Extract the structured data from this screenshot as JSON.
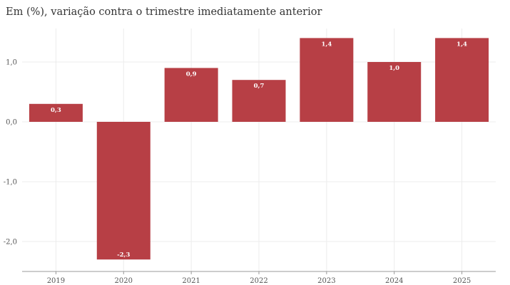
{
  "subtitle": "Em (%), variação contra o trimestre imediatamente anterior",
  "colors": {
    "bar": "#b5393f",
    "grid": "#ececec",
    "axis": "#999999",
    "text": "#555555"
  },
  "chart_data": {
    "type": "bar",
    "title": "",
    "subtitle": "Em (%), variação contra o trimestre imediatamente anterior",
    "xlabel": "",
    "ylabel": "",
    "categories": [
      "2019",
      "2020",
      "2021",
      "2022",
      "2023",
      "2024",
      "2025"
    ],
    "values": [
      0.3,
      -2.3,
      0.9,
      0.7,
      1.4,
      1.0,
      1.4
    ],
    "data_labels": [
      "0,3",
      "-2,3",
      "0,9",
      "0,7",
      "1,4",
      "1,0",
      "1,4"
    ],
    "y_ticks": [
      1.0,
      0.0,
      -1.0,
      -2.0
    ],
    "y_tick_labels": [
      "1,0",
      "0,0",
      "-1,0",
      "-2,0"
    ],
    "ylim": [
      -2.5,
      1.4
    ],
    "grid": true,
    "legend": "none"
  }
}
